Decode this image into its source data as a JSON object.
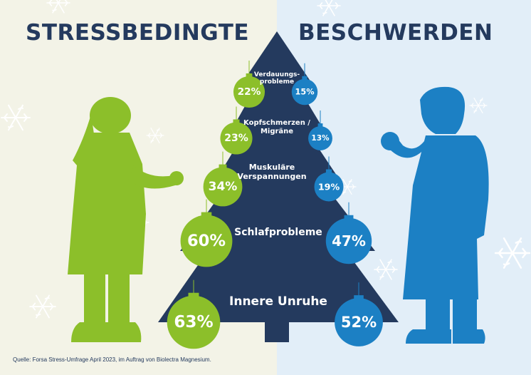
{
  "title_left": "STRESSBEDINGTE",
  "title_right": "BESCHWERDEN",
  "source": "Quelle: Forsa Stress-Umfrage April 2023, im Auftrag von Biolectra Magnesium.",
  "colors": {
    "women": "#8cbf2a",
    "men": "#1c80c4",
    "tree": "#243a5e",
    "bg_left": "#f3f3e7",
    "bg_right": "#e2eef8"
  },
  "icons": [
    "woman-silhouette-icon",
    "man-silhouette-icon",
    "snowflake-icon",
    "christmas-tree-icon",
    "bauble-icon"
  ],
  "chart_data": {
    "type": "bar",
    "title": "STRESSBEDINGTE BESCHWERDEN",
    "categories": [
      "Verdauungs-\nprobleme",
      "Kopfschmerzen /\nMigräne",
      "Muskuläre\nVerspannungen",
      "Schlafprobleme",
      "Innere Unruhe"
    ],
    "series": [
      {
        "values": [
          22,
          23,
          34,
          60,
          63
        ],
        "labels": [
          "22%",
          "23%",
          "34%",
          "60%",
          "63%"
        ]
      },
      {
        "values": [
          15,
          13,
          19,
          47,
          52
        ],
        "labels": [
          "15%",
          "13%",
          "19%",
          "47%",
          "52%"
        ]
      }
    ],
    "unit": "%"
  }
}
